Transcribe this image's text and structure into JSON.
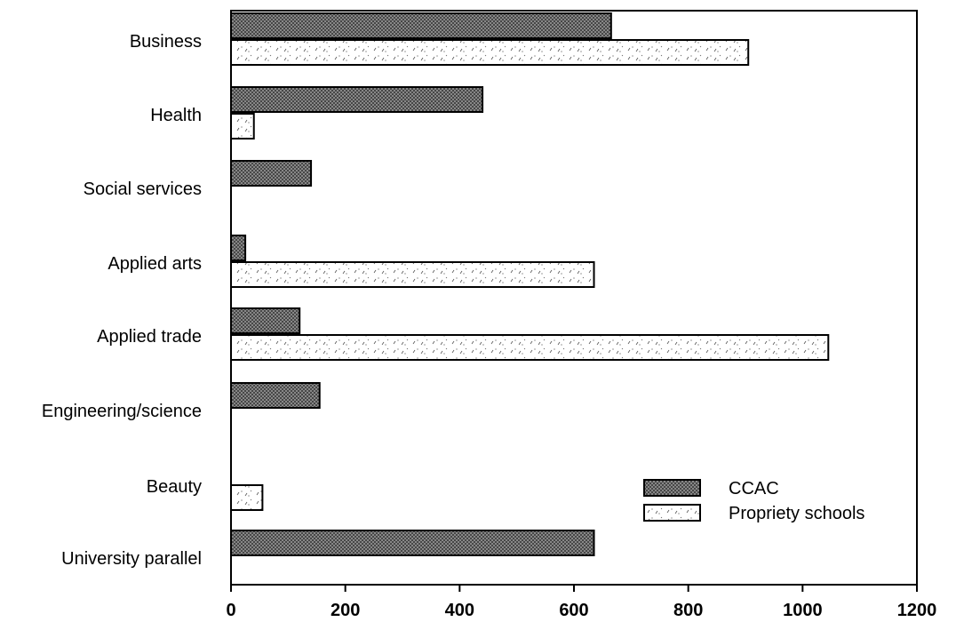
{
  "chart_data": {
    "type": "bar",
    "orientation": "horizontal",
    "title": "",
    "xlabel": "",
    "ylabel": "",
    "categories": [
      "Business",
      "Health",
      "Social services",
      "Applied arts",
      "Applied trade",
      "Engineering/science",
      "Beauty",
      "University parallel"
    ],
    "series": [
      {
        "name": "CCAC",
        "color": "#8a8a8a",
        "pattern": "dark-crosshatch",
        "values": [
          665,
          440,
          140,
          25,
          120,
          155,
          0,
          635
        ]
      },
      {
        "name": "Propriety schools",
        "color": "#ffffff",
        "pattern": "light-speckle",
        "values": [
          905,
          40,
          0,
          635,
          1045,
          0,
          55,
          0
        ]
      }
    ],
    "xlim": [
      0,
      1200
    ],
    "xticks": [
      0,
      200,
      400,
      600,
      800,
      1000,
      1200
    ],
    "grid": false,
    "legend_position": "bottom-right"
  }
}
